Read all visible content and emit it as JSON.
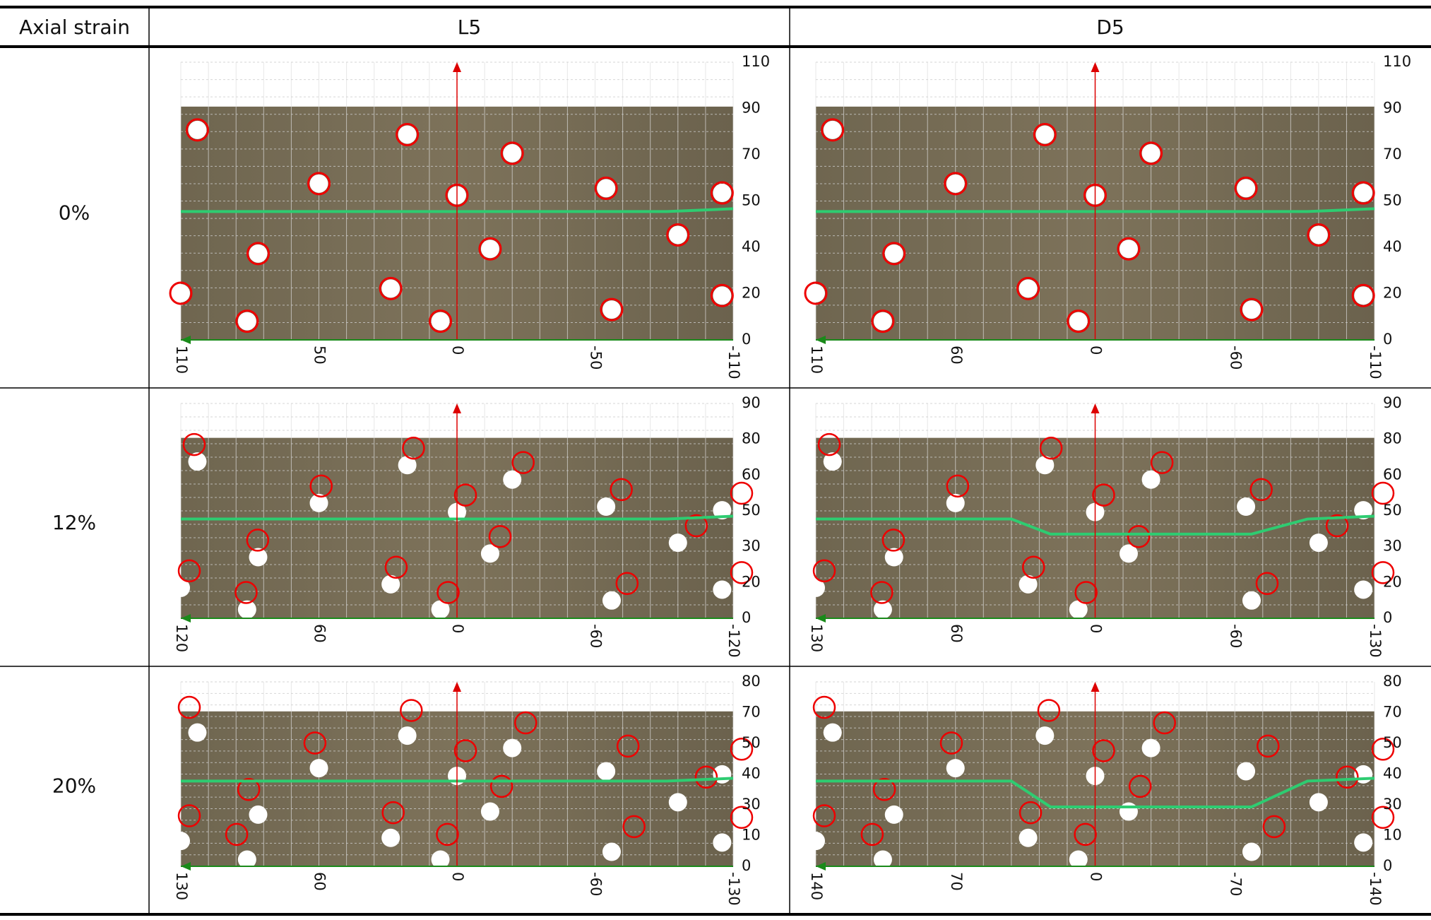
{
  "table": {
    "header": [
      "Axial strain",
      "L5",
      "D5"
    ],
    "rows": [
      {
        "label": "0%",
        "panels": [
          {
            "yticks": [
              "110",
              "90",
              "70",
              "50",
              "40",
              "20",
              "0"
            ],
            "xticks": [
              "110",
              "50",
              "0",
              "-50",
              "-110"
            ]
          },
          {
            "yticks": [
              "110",
              "90",
              "70",
              "50",
              "40",
              "20",
              "0"
            ],
            "xticks": [
              "110",
              "60",
              "0",
              "-60",
              "-110"
            ]
          }
        ]
      },
      {
        "label": "12%",
        "panels": [
          {
            "yticks": [
              "90",
              "80",
              "60",
              "50",
              "30",
              "20",
              "0"
            ],
            "xticks": [
              "120",
              "60",
              "0",
              "-60",
              "-120"
            ]
          },
          {
            "yticks": [
              "90",
              "80",
              "60",
              "50",
              "30",
              "20",
              "0"
            ],
            "xticks": [
              "130",
              "60",
              "0",
              "-60",
              "-130"
            ]
          }
        ]
      },
      {
        "label": "20%",
        "panels": [
          {
            "yticks": [
              "80",
              "70",
              "50",
              "40",
              "30",
              "10",
              "0"
            ],
            "xticks": [
              "130",
              "60",
              "0",
              "-60",
              "-130"
            ]
          },
          {
            "yticks": [
              "80",
              "70",
              "50",
              "40",
              "30",
              "10",
              "0"
            ],
            "xticks": [
              "140",
              "70",
              "0",
              "-70",
              "-140"
            ]
          }
        ]
      }
    ]
  }
}
